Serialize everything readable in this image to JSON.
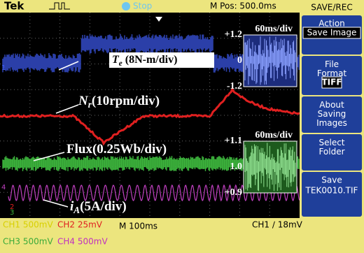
{
  "topbar": {
    "brand": "Tek",
    "state": "Stop",
    "position": "M Pos: 500.0ms"
  },
  "menu": {
    "title": "SAVE/REC",
    "items": [
      {
        "label": "Action",
        "value": "Save Image"
      },
      {
        "label": "File Format",
        "value": "TIFF"
      },
      {
        "label": "About Saving Images"
      },
      {
        "label": "Select Folder"
      },
      {
        "label": "Save",
        "value": "TEK0010.TIF"
      }
    ]
  },
  "screen": {
    "markers": [
      "1",
      "4",
      "2",
      "3"
    ],
    "annotations": {
      "torque": {
        "symbol": "T",
        "sub": "e",
        "text": " (8N-m/div)"
      },
      "speed": {
        "symbol": "N",
        "sub": "r",
        "text": "(10rpm/div)"
      },
      "flux": {
        "text": "Flux(0.25Wb/div)"
      },
      "current": {
        "symbol": "i",
        "sub": "A",
        "text": "(5A/div)"
      }
    },
    "insets": [
      {
        "scale": "60ms/div",
        "labels": [
          "+1.2",
          "0",
          "-1.2"
        ]
      },
      {
        "scale": "60ms/div",
        "labels": [
          "+1.1",
          "1.0",
          "+0.9"
        ]
      }
    ]
  },
  "status": {
    "ch1": "CH1  500mV",
    "ch2": "CH2  25mV",
    "timebase": "M 100ms",
    "trigger": "CH1 ∕ 18mV",
    "ch3": "CH3  500mV",
    "ch4": "CH4  500mV"
  }
}
